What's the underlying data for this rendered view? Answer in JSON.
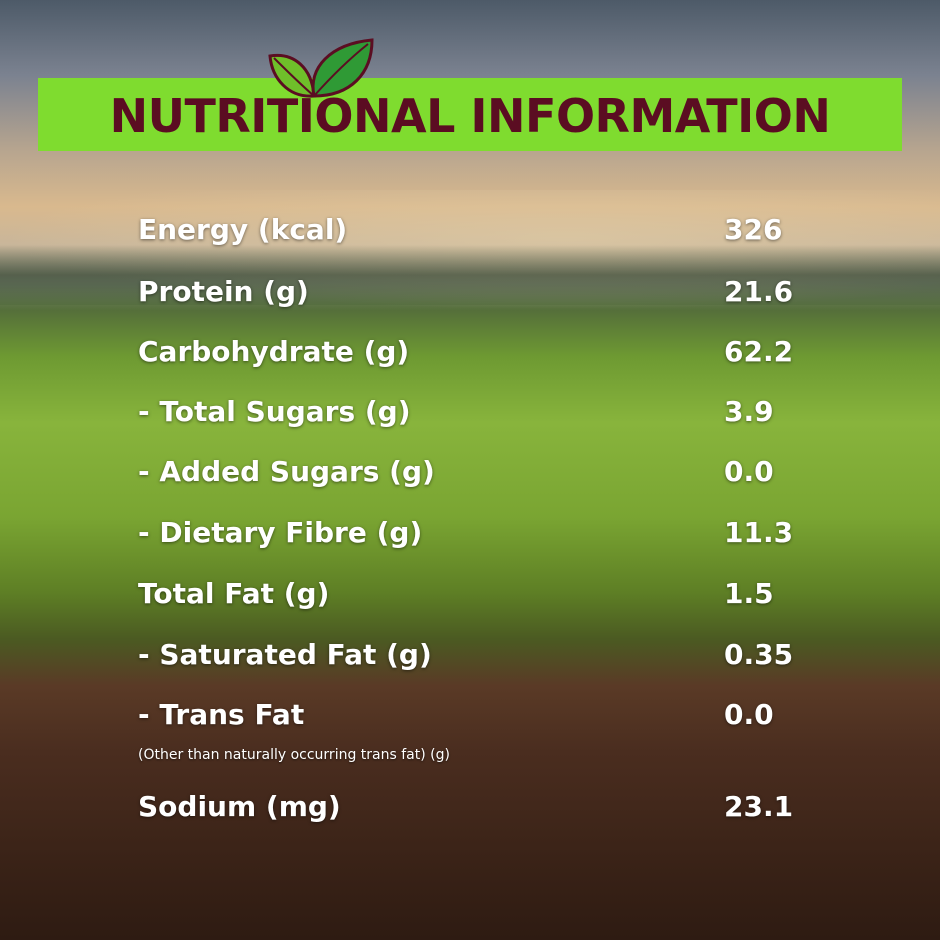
{
  "header": {
    "title": "NUTRITIONAL INFORMATION"
  },
  "table": {
    "rows": [
      {
        "label": "Energy (kcal)",
        "value": "326"
      },
      {
        "label": "Protein (g)",
        "value": "21.6"
      },
      {
        "label": "Carbohydrate (g)",
        "value": "62.2"
      },
      {
        "label": "- Total Sugars (g)",
        "value": "3.9"
      },
      {
        "label": "- Added Sugars (g)",
        "value": "0.0"
      },
      {
        "label": "- Dietary Fibre (g)",
        "value": "11.3"
      },
      {
        "label": "Total Fat (g)",
        "value": "1.5"
      },
      {
        "label": "- Saturated Fat (g)",
        "value": "0.35"
      },
      {
        "label": "- Trans Fat",
        "value": "0.0",
        "note": "(Other than naturally occurring trans fat) (g)"
      },
      {
        "label": "Sodium (mg)",
        "value": "23.1"
      }
    ]
  }
}
